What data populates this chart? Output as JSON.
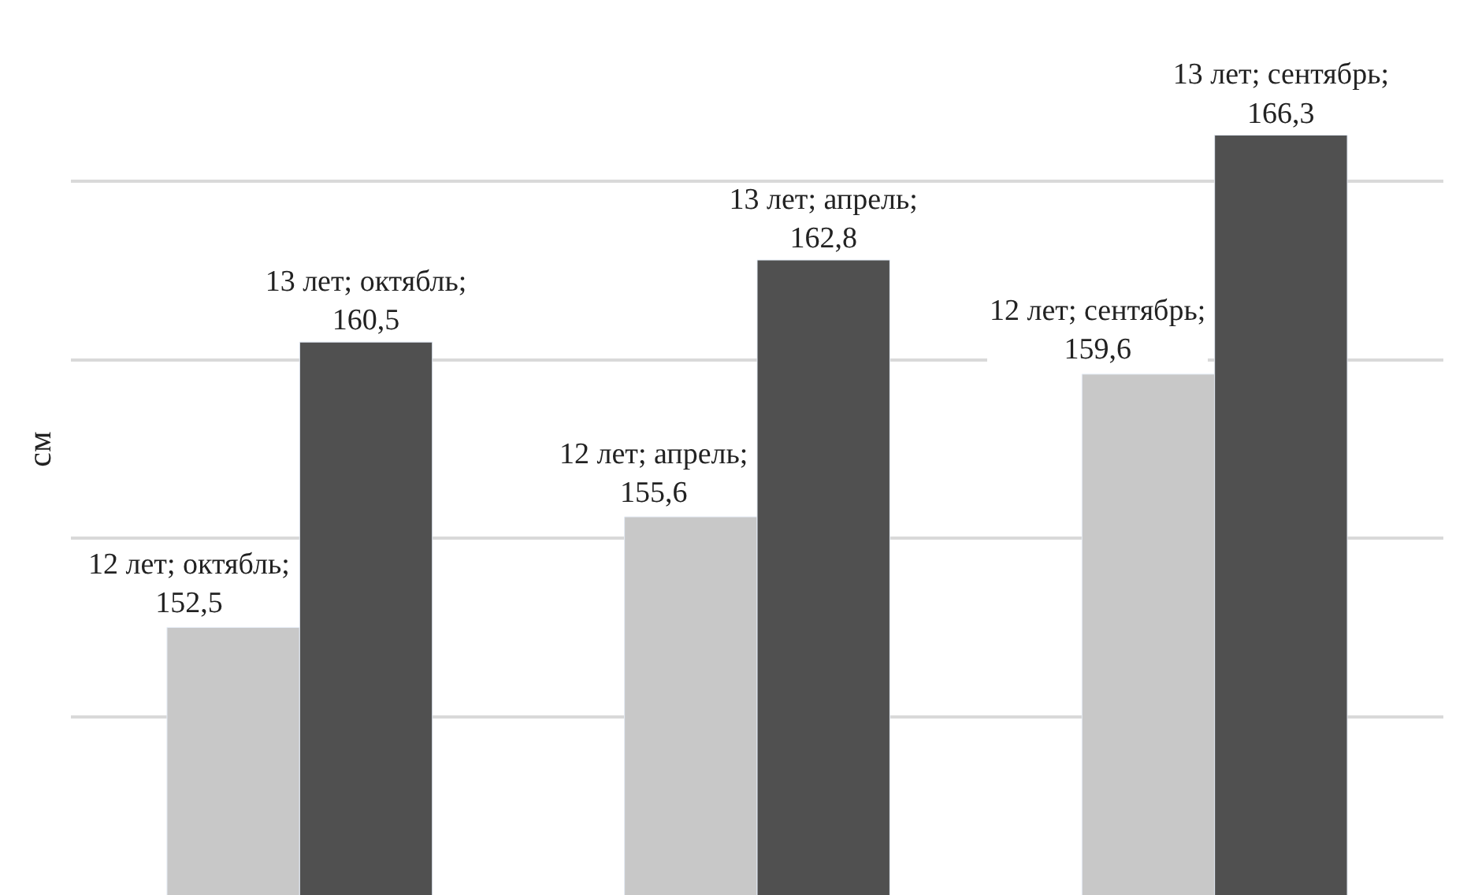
{
  "chart_data": {
    "type": "bar",
    "ylabel": "см",
    "categories": [
      null,
      null,
      null
    ],
    "series": [
      {
        "color": "#c8c8c8",
        "values": [
          152.5,
          155.6,
          159.6
        ],
        "value_labels": [
          "12 лет; октябль; 152,5",
          "12 лет; апрель; 155,6",
          "12 лет; сентябрь; 159,6"
        ]
      },
      {
        "color": "#505050",
        "values": [
          160.5,
          162.8,
          166.3
        ],
        "value_labels": [
          "13 лет; октябль; 160,5",
          "13 лет; апрель; 162,8",
          "13 лет; сентябрь; 166,3"
        ]
      }
    ],
    "ylim": [
      145,
      170
    ],
    "yticks": [
      {
        "value": 150,
        "label": null
      },
      {
        "value": 155,
        "label": null
      },
      {
        "value": 160,
        "label": null
      },
      {
        "value": 165,
        "label": null
      },
      {
        "value": 170,
        "label": null
      }
    ],
    "grid": "y",
    "legend": false
  }
}
